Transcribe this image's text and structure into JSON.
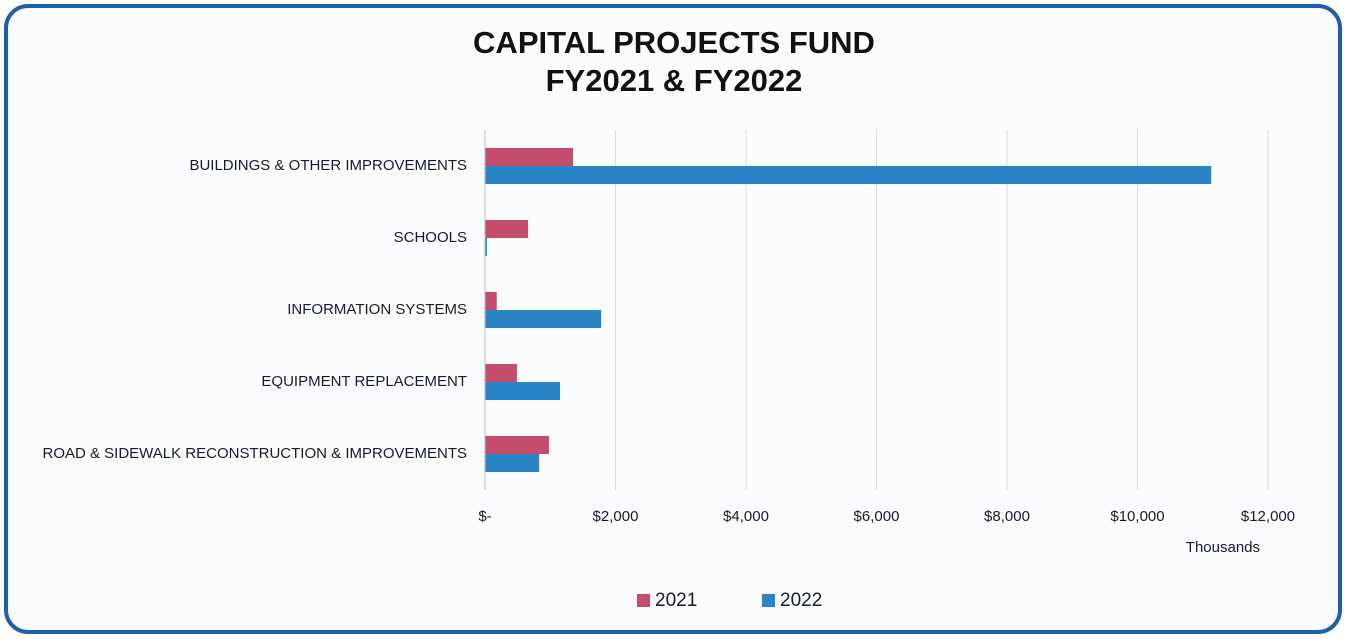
{
  "chart_data": {
    "type": "hbar",
    "title": "CAPITAL PROJECTS FUND",
    "subtitle": "FY2021 & FY2022",
    "categories": [
      "BUILDINGS & OTHER IMPROVEMENTS",
      "SCHOOLS",
      "INFORMATION SYSTEMS",
      "EQUIPMENT REPLACEMENT",
      "ROAD & SIDEWALK RECONSTRUCTION & IMPROVEMENTS"
    ],
    "series": [
      {
        "name": "2021",
        "color": "#c24d6c",
        "values": [
          1350,
          660,
          180,
          490,
          980
        ]
      },
      {
        "name": "2022",
        "color": "#2b84c6",
        "values": [
          11130,
          30,
          1780,
          1150,
          830
        ]
      }
    ],
    "xlim": [
      0,
      12000
    ],
    "xticks": [
      {
        "value": 0,
        "label": "$-"
      },
      {
        "value": 2000,
        "label": "$2,000"
      },
      {
        "value": 4000,
        "label": "$4,000"
      },
      {
        "value": 6000,
        "label": "$6,000"
      },
      {
        "value": 8000,
        "label": "$8,000"
      },
      {
        "value": 10000,
        "label": "$10,000"
      },
      {
        "value": 12000,
        "label": "$12,000"
      }
    ],
    "x_axis_label": "Thousands",
    "grid": true,
    "legend": "bottom"
  }
}
